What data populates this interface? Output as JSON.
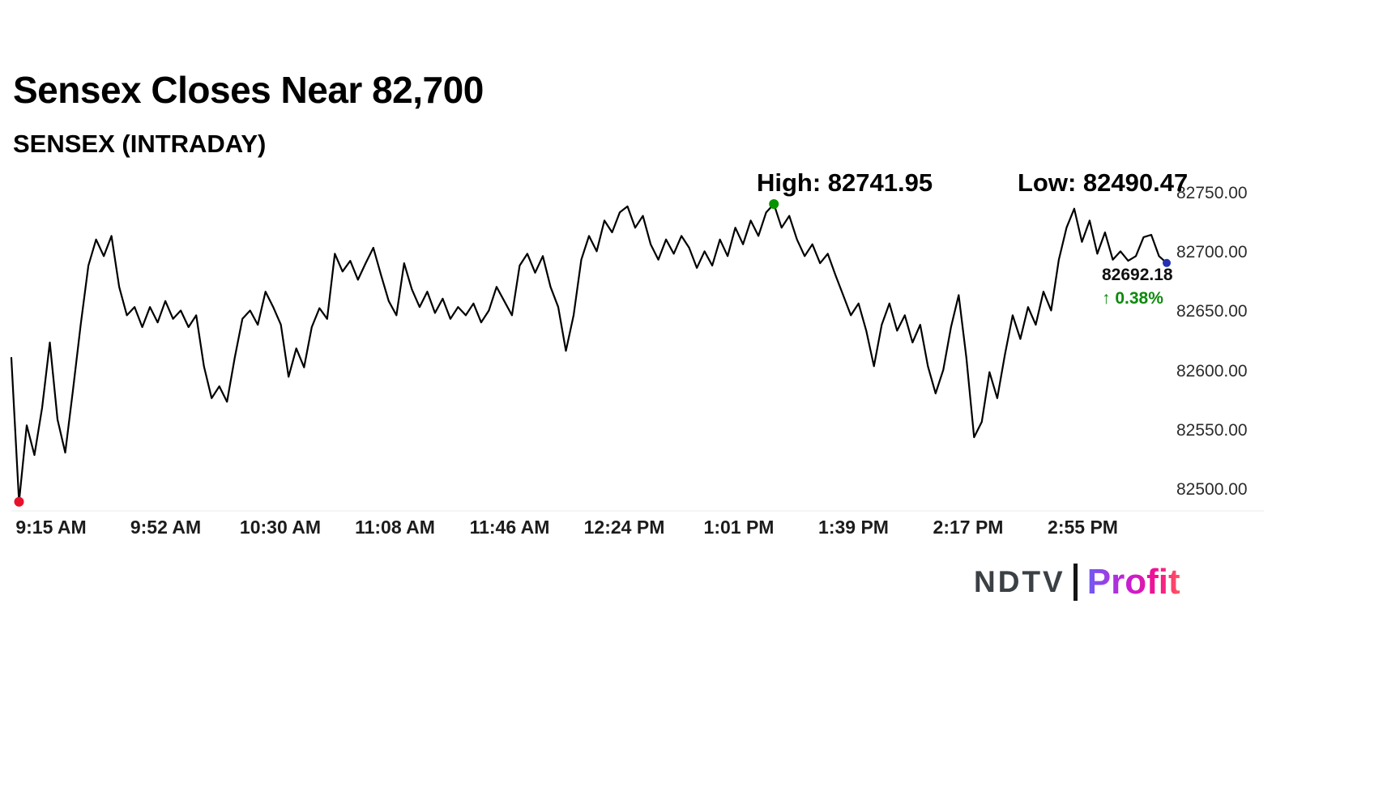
{
  "title": "Sensex Closes Near 82,700",
  "subtitle": "SENSEX (INTRADAY)",
  "annotations": {
    "high_label": "High: 82741.95",
    "low_label": "Low: 82490.47",
    "last_price": "82692.18",
    "change_percent": "↑ 0.38%"
  },
  "logo": {
    "ndtv": "NDTV",
    "profit": "Profit"
  },
  "colors": {
    "line": "#000000",
    "low_dot": "#e8112d",
    "high_dot": "#089400",
    "end_dot": "#2430b4",
    "change": "#0c8a0c",
    "ndtv_text": "#3b4045",
    "profit_gradient": [
      "#6f5bf5",
      "#c81ed1",
      "#f5108c",
      "#ff5a5f"
    ],
    "axis_text": "#1c1c1c",
    "baseline": "#e8e8e8"
  },
  "chart_data": {
    "type": "line",
    "title": "SENSEX (INTRADAY)",
    "xlabel": "",
    "ylabel": "",
    "x_axis_labels": [
      "9:15 AM",
      "9:52 AM",
      "10:30 AM",
      "11:08 AM",
      "11:46 AM",
      "12:24 PM",
      "1:01 PM",
      "1:39 PM",
      "2:17 PM",
      "2:55 PM"
    ],
    "y_axis_labels": [
      "82750.00",
      "82700.00",
      "82650.00",
      "82600.00",
      "82550.00",
      "82500.00"
    ],
    "ylim": [
      82500,
      82750
    ],
    "grid": false,
    "legend": false,
    "high": 82741.95,
    "low": 82490.47,
    "last": 82692.18,
    "change_pct": 0.38,
    "values": [
      82612,
      82490.47,
      82555,
      82530,
      82570,
      82625,
      82560,
      82532,
      82585,
      82640,
      82690,
      82712,
      82698,
      82715,
      82672,
      82648,
      82655,
      82638,
      82655,
      82642,
      82660,
      82645,
      82652,
      82638,
      82648,
      82605,
      82578,
      82588,
      82575,
      82612,
      82645,
      82652,
      82640,
      82668,
      82655,
      82640,
      82596,
      82620,
      82604,
      82638,
      82654,
      82645,
      82700,
      82685,
      82694,
      82678,
      82692,
      82705,
      82682,
      82660,
      82648,
      82692,
      82670,
      82655,
      82668,
      82650,
      82662,
      82645,
      82655,
      82648,
      82658,
      82642,
      82652,
      82672,
      82660,
      82648,
      82690,
      82700,
      82684,
      82698,
      82672,
      82655,
      82618,
      82648,
      82695,
      82715,
      82702,
      82728,
      82718,
      82735,
      82740,
      82722,
      82732,
      82708,
      82695,
      82712,
      82700,
      82715,
      82705,
      82688,
      82702,
      82690,
      82712,
      82698,
      82722,
      82708,
      82728,
      82715,
      82735,
      82741.95,
      82722,
      82732,
      82712,
      82698,
      82708,
      82692,
      82700,
      82682,
      82665,
      82648,
      82658,
      82635,
      82605,
      82640,
      82658,
      82635,
      82648,
      82625,
      82640,
      82605,
      82582,
      82602,
      82638,
      82665,
      82612,
      82545,
      82558,
      82600,
      82578,
      82615,
      82648,
      82628,
      82655,
      82640,
      82668,
      82652,
      82695,
      82722,
      82738,
      82710,
      82728,
      82700,
      82718,
      82695,
      82702,
      82694,
      82698,
      82714,
      82716,
      82698,
      82692.18
    ],
    "markers": [
      {
        "index": 1,
        "name": "day-low-dot",
        "color_key": "low_dot",
        "r": 6
      },
      {
        "index": 99,
        "name": "day-high-dot",
        "color_key": "high_dot",
        "r": 6
      },
      {
        "index": 150,
        "name": "last-price-dot",
        "color_key": "end_dot",
        "r": 5
      }
    ]
  }
}
